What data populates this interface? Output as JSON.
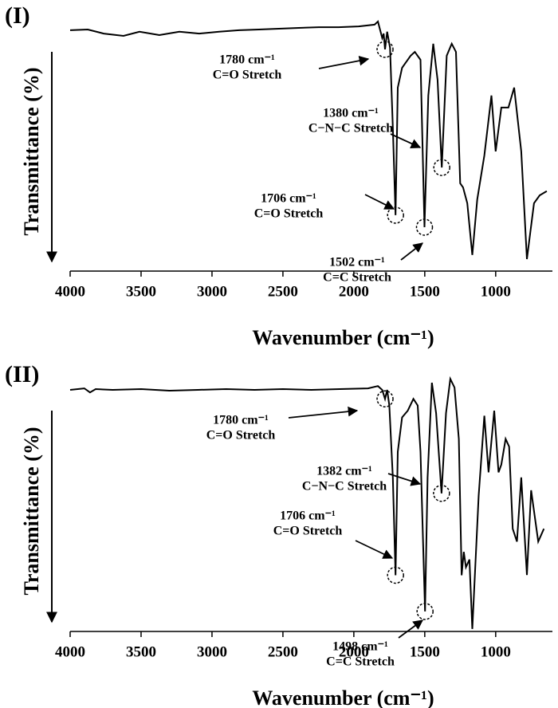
{
  "chart_data": [
    {
      "type": "line",
      "panel_label": "(I)",
      "x_label": "Wavenumber (cm⁻¹)",
      "y_label": "Transmittance (%)",
      "xlim": [
        4000,
        600
      ],
      "xticks": [
        4000,
        3500,
        3000,
        2500,
        2000,
        1500,
        1000
      ],
      "ylim": [
        0,
        100
      ],
      "color": "#000000",
      "x": [
        4000,
        3876,
        3764,
        3624,
        3511,
        3371,
        3230,
        3090,
        2949,
        2809,
        2669,
        2528,
        2388,
        2247,
        2107,
        1966,
        1854,
        1830,
        1800,
        1790,
        1780,
        1765,
        1745,
        1725,
        1706,
        1690,
        1660,
        1600,
        1570,
        1530,
        1502,
        1475,
        1440,
        1410,
        1380,
        1345,
        1310,
        1280,
        1250,
        1230,
        1200,
        1165,
        1130,
        1080,
        1030,
        1000,
        960,
        910,
        870,
        820,
        780,
        730,
        690,
        640
      ],
      "values": [
        94.4,
        94.7,
        93.1,
        92.2,
        93.8,
        92.5,
        93.8,
        93.1,
        93.8,
        94.4,
        94.7,
        95,
        95.3,
        95.6,
        95.6,
        95.9,
        96.6,
        97.8,
        91.3,
        93.1,
        86.9,
        93.8,
        87.5,
        56.3,
        21.9,
        71.9,
        79.7,
        84.4,
        85.9,
        82.8,
        17.2,
        68.8,
        89.1,
        75,
        40.6,
        84.4,
        89.1,
        85.9,
        34.4,
        32.8,
        26.6,
        6.3,
        28.1,
        45.3,
        68.8,
        46.9,
        64.1,
        64.1,
        71.9,
        46.9,
        4.7,
        26.6,
        29.7,
        31.3
      ],
      "annotations": [
        {
          "x": 1780,
          "lines": [
            "1780 cm⁻¹",
            "C=O Stretch"
          ]
        },
        {
          "x": 1380,
          "lines": [
            "1380 cm⁻¹",
            "C−N−C Stretch"
          ]
        },
        {
          "x": 1706,
          "lines": [
            "1706 cm⁻¹",
            "C=O Stretch"
          ]
        },
        {
          "x": 1502,
          "lines": [
            "1502 cm⁻¹",
            "C=C Stretch"
          ]
        }
      ]
    },
    {
      "type": "line",
      "panel_label": "(II)",
      "x_label": "Wavenumber (cm⁻¹)",
      "y_label": "Transmittance (%)",
      "xlim": [
        4000,
        600
      ],
      "xticks": [
        4000,
        3500,
        3000,
        2500,
        2000,
        1500,
        1000
      ],
      "ylim": [
        0,
        100
      ],
      "color": "#000000",
      "x": [
        4000,
        3900,
        3860,
        3820,
        3700,
        3500,
        3300,
        3100,
        2900,
        2700,
        2500,
        2300,
        2100,
        1900,
        1830,
        1800,
        1780,
        1765,
        1750,
        1725,
        1706,
        1690,
        1660,
        1620,
        1580,
        1550,
        1530,
        1498,
        1480,
        1450,
        1420,
        1382,
        1350,
        1320,
        1290,
        1260,
        1240,
        1225,
        1210,
        1185,
        1165,
        1120,
        1080,
        1050,
        1010,
        980,
        960,
        930,
        905,
        880,
        850,
        820,
        780,
        750,
        700,
        660
      ],
      "values": [
        94.1,
        94.7,
        93.1,
        94.4,
        94.1,
        94.4,
        93.8,
        94.1,
        94.4,
        94.1,
        94.4,
        94.1,
        94.4,
        94.7,
        95.6,
        94.1,
        90.6,
        94.1,
        88,
        60,
        21.9,
        70,
        83.4,
        86,
        90.6,
        88,
        70,
        7.8,
        60,
        96.9,
        85,
        53.8,
        85,
        98.4,
        95,
        75,
        21.9,
        31,
        25,
        28,
        1,
        53,
        84,
        62,
        86,
        62,
        65,
        75,
        72,
        40,
        35,
        60,
        22,
        55,
        35,
        40
      ],
      "annotations": [
        {
          "x": 1780,
          "lines": [
            "1780 cm⁻¹",
            "C=O Stretch"
          ]
        },
        {
          "x": 1382,
          "lines": [
            "1382 cm⁻¹",
            "C−N−C Stretch"
          ]
        },
        {
          "x": 1706,
          "lines": [
            "1706 cm⁻¹",
            "C=O Stretch"
          ]
        },
        {
          "x": 1498,
          "lines": [
            "1498 cm⁻¹",
            "C=C Stretch"
          ]
        }
      ]
    }
  ]
}
